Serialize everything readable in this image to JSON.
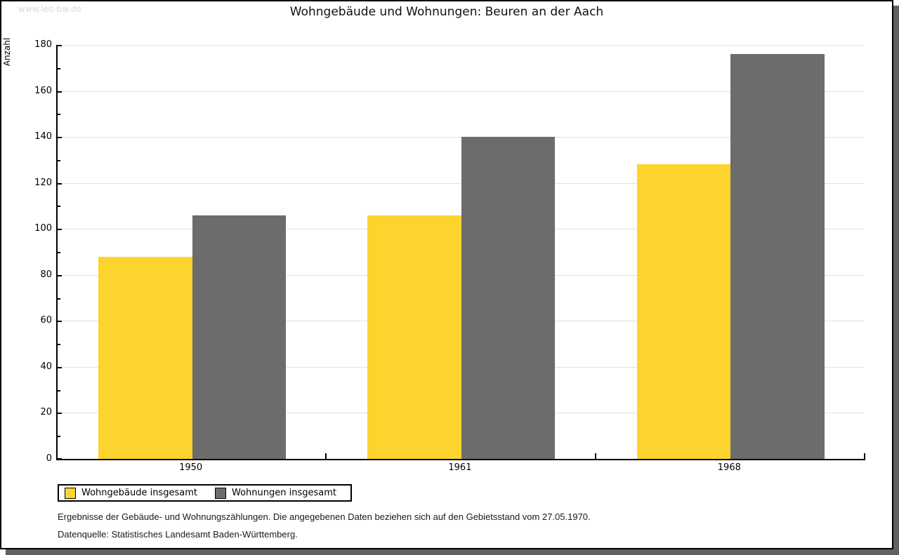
{
  "watermark": "www.leo-bw.de",
  "chart_data": {
    "type": "bar",
    "title": "Wohngebäude und Wohnungen: Beuren an der Aach",
    "ylabel": "Anzahl",
    "xlabel": "",
    "categories": [
      "1950",
      "1961",
      "1968"
    ],
    "series": [
      {
        "name": "Wohngebäude insgesamt",
        "color": "#FCD42D",
        "values": [
          88,
          106,
          128
        ]
      },
      {
        "name": "Wohnungen insgesamt",
        "color": "#6C6C6C",
        "values": [
          106,
          140,
          176
        ]
      }
    ],
    "ylim": [
      0,
      180
    ],
    "y_major_step": 20,
    "y_minor_step": 10,
    "grid": true,
    "legend_position": "bottom-left"
  },
  "footnotes": [
    "Ergebnisse der Gebäude- und Wohnungszählungen. Die angegebenen Daten beziehen sich auf den Gebietsstand vom 27.05.1970.",
    "Datenquelle: Statistisches Landesamt Baden-Württemberg."
  ]
}
